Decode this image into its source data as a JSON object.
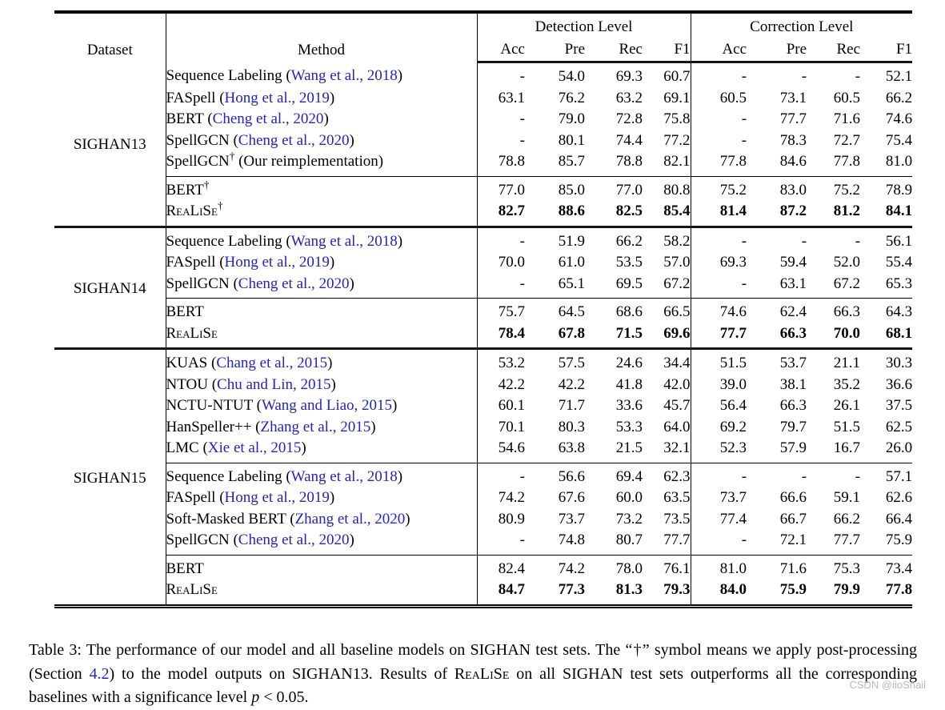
{
  "table": {
    "header": {
      "dataset": "Dataset",
      "method": "Method",
      "groups": [
        {
          "label": "Detection Level"
        },
        {
          "label": "Correction Level"
        }
      ],
      "sub": [
        "Acc",
        "Pre",
        "Rec",
        "F1",
        "Acc",
        "Pre",
        "Rec",
        "F1"
      ]
    },
    "dagger_symbol": "†",
    "sections": [
      {
        "dataset": "SIGHAN13",
        "blocks": [
          {
            "rows": [
              {
                "name": "Sequence Labeling",
                "cite": "Wang et al., 2018",
                "values": [
                  "-",
                  "54.0",
                  "69.3",
                  "60.7",
                  "-",
                  "-",
                  "-",
                  "52.1"
                ]
              },
              {
                "name": "FASpell",
                "cite": "Hong et al., 2019",
                "values": [
                  "63.1",
                  "76.2",
                  "63.2",
                  "69.1",
                  "60.5",
                  "73.1",
                  "60.5",
                  "66.2"
                ]
              },
              {
                "name": "BERT",
                "cite": "Cheng et al., 2020",
                "values": [
                  "-",
                  "79.0",
                  "72.8",
                  "75.8",
                  "-",
                  "77.7",
                  "71.6",
                  "74.6"
                ]
              },
              {
                "name": "SpellGCN",
                "cite": "Cheng et al., 2020",
                "values": [
                  "-",
                  "80.1",
                  "74.4",
                  "77.2",
                  "-",
                  "78.3",
                  "72.7",
                  "75.4"
                ]
              },
              {
                "name": "SpellGCN",
                "dagger": true,
                "note": "Our reimplementation",
                "values": [
                  "78.8",
                  "85.7",
                  "78.8",
                  "82.1",
                  "77.8",
                  "84.6",
                  "77.8",
                  "81.0"
                ]
              }
            ]
          },
          {
            "rows": [
              {
                "name": "BERT",
                "dagger": true,
                "values": [
                  "77.0",
                  "85.0",
                  "77.0",
                  "80.8",
                  "75.2",
                  "83.0",
                  "75.2",
                  "78.9"
                ]
              },
              {
                "name": "ReaLiSe",
                "smallcaps": true,
                "dagger": true,
                "bold": true,
                "values": [
                  "82.7",
                  "88.6",
                  "82.5",
                  "85.4",
                  "81.4",
                  "87.2",
                  "81.2",
                  "84.1"
                ]
              }
            ]
          }
        ]
      },
      {
        "dataset": "SIGHAN14",
        "blocks": [
          {
            "rows": [
              {
                "name": "Sequence Labeling",
                "cite": "Wang et al., 2018",
                "values": [
                  "-",
                  "51.9",
                  "66.2",
                  "58.2",
                  "-",
                  "-",
                  "-",
                  "56.1"
                ]
              },
              {
                "name": "FASpell",
                "cite": "Hong et al., 2019",
                "values": [
                  "70.0",
                  "61.0",
                  "53.5",
                  "57.0",
                  "69.3",
                  "59.4",
                  "52.0",
                  "55.4"
                ]
              },
              {
                "name": "SpellGCN",
                "cite": "Cheng et al., 2020",
                "values": [
                  "-",
                  "65.1",
                  "69.5",
                  "67.2",
                  "-",
                  "63.1",
                  "67.2",
                  "65.3"
                ]
              }
            ]
          },
          {
            "rows": [
              {
                "name": "BERT",
                "values": [
                  "75.7",
                  "64.5",
                  "68.6",
                  "66.5",
                  "74.6",
                  "62.4",
                  "66.3",
                  "64.3"
                ]
              },
              {
                "name": "ReaLiSe",
                "smallcaps": true,
                "bold": true,
                "values": [
                  "78.4",
                  "67.8",
                  "71.5",
                  "69.6",
                  "77.7",
                  "66.3",
                  "70.0",
                  "68.1"
                ]
              }
            ]
          }
        ]
      },
      {
        "dataset": "SIGHAN15",
        "blocks": [
          {
            "rows": [
              {
                "name": "KUAS",
                "cite": "Chang et al., 2015",
                "values": [
                  "53.2",
                  "57.5",
                  "24.6",
                  "34.4",
                  "51.5",
                  "53.7",
                  "21.1",
                  "30.3"
                ]
              },
              {
                "name": "NTOU",
                "cite": "Chu and Lin, 2015",
                "values": [
                  "42.2",
                  "42.2",
                  "41.8",
                  "42.0",
                  "39.0",
                  "38.1",
                  "35.2",
                  "36.6"
                ]
              },
              {
                "name": "NCTU-NTUT",
                "cite": "Wang and Liao, 2015",
                "values": [
                  "60.1",
                  "71.7",
                  "33.6",
                  "45.7",
                  "56.4",
                  "66.3",
                  "26.1",
                  "37.5"
                ]
              },
              {
                "name": "HanSpeller++",
                "cite": "Zhang et al., 2015",
                "values": [
                  "70.1",
                  "80.3",
                  "53.3",
                  "64.0",
                  "69.2",
                  "79.7",
                  "51.5",
                  "62.5"
                ]
              },
              {
                "name": "LMC",
                "cite": "Xie et al., 2015",
                "values": [
                  "54.6",
                  "63.8",
                  "21.5",
                  "32.1",
                  "52.3",
                  "57.9",
                  "16.7",
                  "26.0"
                ]
              }
            ]
          },
          {
            "rows": [
              {
                "name": "Sequence Labeling",
                "cite": "Wang et al., 2018",
                "values": [
                  "-",
                  "56.6",
                  "69.4",
                  "62.3",
                  "-",
                  "-",
                  "-",
                  "57.1"
                ]
              },
              {
                "name": "FASpell",
                "cite": "Hong et al., 2019",
                "values": [
                  "74.2",
                  "67.6",
                  "60.0",
                  "63.5",
                  "73.7",
                  "66.6",
                  "59.1",
                  "62.6"
                ]
              },
              {
                "name": "Soft-Masked BERT",
                "cite": "Zhang et al., 2020",
                "values": [
                  "80.9",
                  "73.7",
                  "73.2",
                  "73.5",
                  "77.4",
                  "66.7",
                  "66.2",
                  "66.4"
                ]
              },
              {
                "name": "SpellGCN",
                "cite": "Cheng et al., 2020",
                "values": [
                  "-",
                  "74.8",
                  "80.7",
                  "77.7",
                  "-",
                  "72.1",
                  "77.7",
                  "75.9"
                ]
              }
            ]
          },
          {
            "rows": [
              {
                "name": "BERT",
                "values": [
                  "82.4",
                  "74.2",
                  "78.0",
                  "76.1",
                  "81.0",
                  "71.6",
                  "75.3",
                  "73.4"
                ]
              },
              {
                "name": "ReaLiSe",
                "smallcaps": true,
                "bold": true,
                "values": [
                  "84.7",
                  "77.3",
                  "81.3",
                  "79.3",
                  "84.0",
                  "75.9",
                  "79.9",
                  "77.8"
                ]
              }
            ]
          }
        ]
      }
    ]
  },
  "caption": {
    "parts": [
      {
        "text": "Table 3: The performance of our model and all baseline models on SIGHAN test sets. The “†” symbol means we apply post-processing (Section "
      },
      {
        "text": "4.2",
        "link": true
      },
      {
        "text": ") to the model outputs on SIGHAN13. Results of "
      },
      {
        "text": "ReaLiSe",
        "smallcaps": true
      },
      {
        "text": " on all SIGHAN test sets outperforms all the corresponding baselines with a significance level "
      },
      {
        "text": "p",
        "italic": true
      },
      {
        "text": " < 0.05."
      }
    ]
  },
  "page": {
    "watermark": "CSDN @iioSnail"
  },
  "colors": {
    "citation_link": "#2323c4",
    "text": "#000000",
    "watermark": "#b9b9b9"
  }
}
